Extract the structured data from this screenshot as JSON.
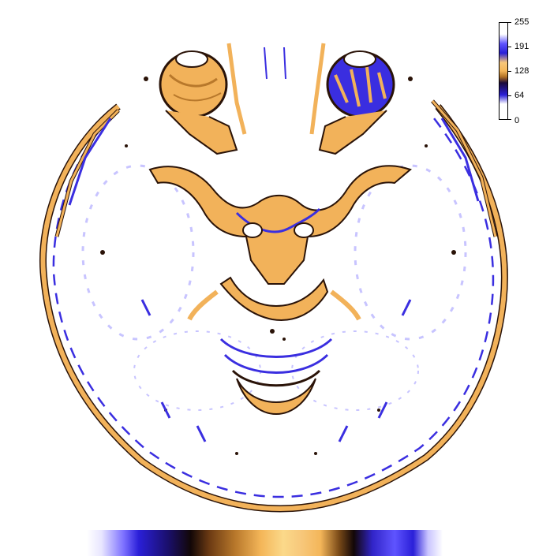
{
  "legend": {
    "ticks": [
      "255",
      "191",
      "128",
      "64",
      "0"
    ],
    "stops": [
      {
        "value": 0,
        "color": "#ffffff"
      },
      {
        "value": 40,
        "color": "#ffffff"
      },
      {
        "value": 64,
        "color": "#2a1fd8"
      },
      {
        "value": 96,
        "color": "#1a0a3a"
      },
      {
        "value": 112,
        "color": "#b27023"
      },
      {
        "value": 128,
        "color": "#f4b659"
      },
      {
        "value": 150,
        "color": "#f7c77a"
      },
      {
        "value": 175,
        "color": "#2a1fd8"
      },
      {
        "value": 200,
        "color": "#5f54ff"
      },
      {
        "value": 225,
        "color": "#ffffff"
      },
      {
        "value": 255,
        "color": "#ffffff"
      }
    ]
  },
  "colors": {
    "orange": "#f2b25a",
    "dark_brown": "#2a1308",
    "blue": "#3a2ee0",
    "light_blue": "#9b94ff",
    "white": "#ffffff"
  },
  "strip": {
    "stops": [
      {
        "pos": 0.0,
        "color": "#ffffff"
      },
      {
        "pos": 0.04,
        "color": "#e8e6ff"
      },
      {
        "pos": 0.1,
        "color": "#7b6fff"
      },
      {
        "pos": 0.14,
        "color": "#2a1fd8"
      },
      {
        "pos": 0.22,
        "color": "#1a0f6a"
      },
      {
        "pos": 0.28,
        "color": "#120707"
      },
      {
        "pos": 0.33,
        "color": "#6b3a13"
      },
      {
        "pos": 0.4,
        "color": "#b8782b"
      },
      {
        "pos": 0.47,
        "color": "#f4b659"
      },
      {
        "pos": 0.53,
        "color": "#fbd98a"
      },
      {
        "pos": 0.58,
        "color": "#f7c77a"
      },
      {
        "pos": 0.63,
        "color": "#f4b659"
      },
      {
        "pos": 0.68,
        "color": "#7a4a18"
      },
      {
        "pos": 0.72,
        "color": "#120707"
      },
      {
        "pos": 0.77,
        "color": "#3124c8"
      },
      {
        "pos": 0.83,
        "color": "#5f54ff"
      },
      {
        "pos": 0.88,
        "color": "#2a1fd8"
      },
      {
        "pos": 0.92,
        "color": "#c9c4ff"
      },
      {
        "pos": 0.96,
        "color": "#ffffff"
      },
      {
        "pos": 1.0,
        "color": "#ffffff"
      }
    ]
  }
}
